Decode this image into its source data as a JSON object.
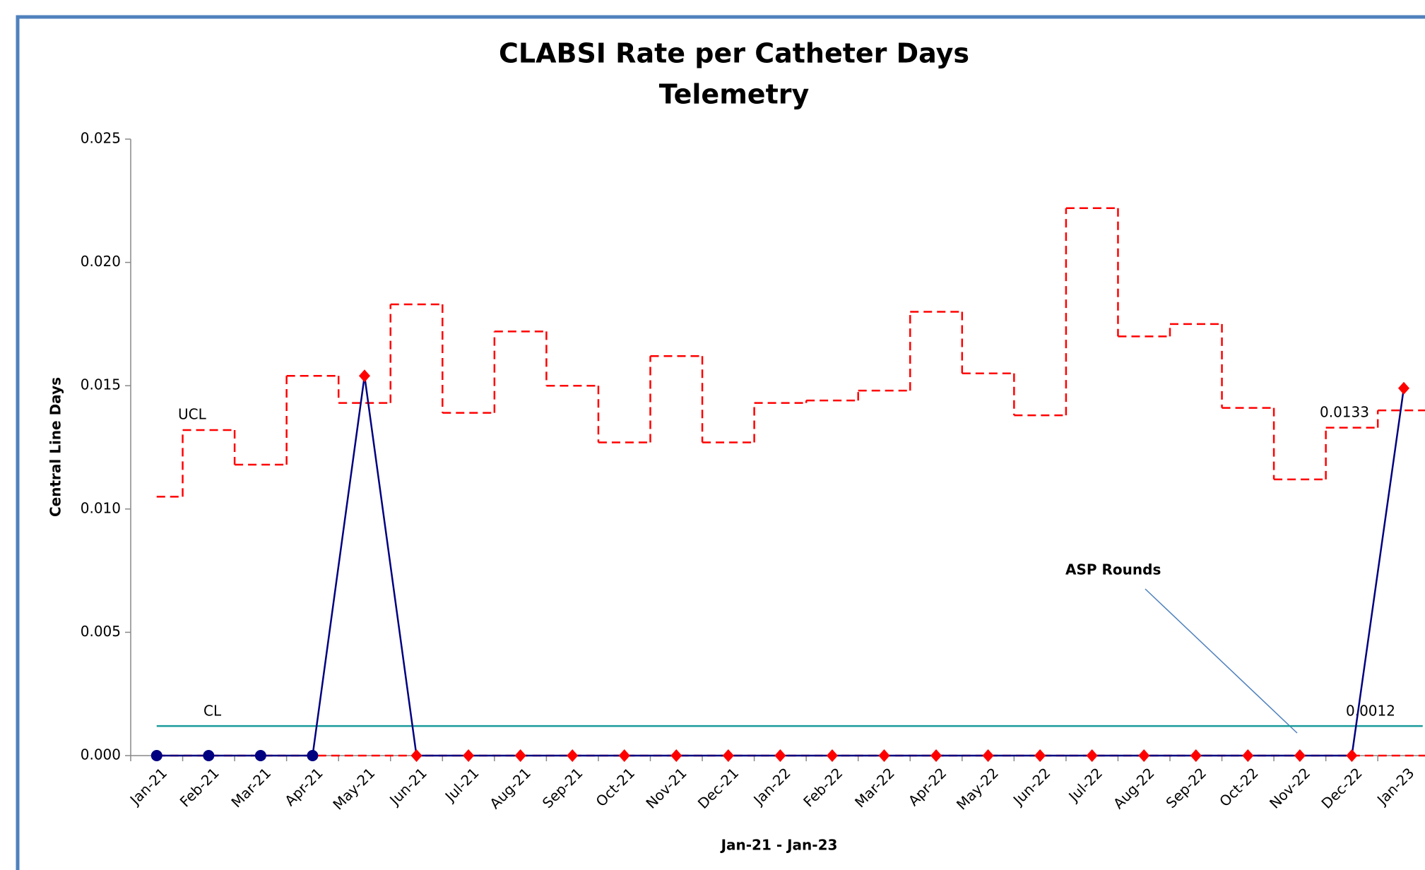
{
  "chart_data": {
    "type": "control",
    "title": "CLABSI Rate per Catheter Days",
    "subtitle": "Telemetry",
    "y_label": "Central Line Days",
    "x_label": "Jan-21 - Jan-23",
    "categories": [
      "Jan-21",
      "Feb-21",
      "Mar-21",
      "Apr-21",
      "May-21",
      "Jun-21",
      "Jul-21",
      "Aug-21",
      "Sep-21",
      "Oct-21",
      "Nov-21",
      "Dec-21",
      "Jan-22",
      "Feb-22",
      "Mar-22",
      "Apr-22",
      "May-22",
      "Jun-22",
      "Jul-22",
      "Aug-22",
      "Sep-22",
      "Oct-22",
      "Nov-22",
      "Dec-22",
      "Jan-23"
    ],
    "ylim": [
      0,
      0.025
    ],
    "yticks": [
      {
        "value": 0,
        "label": "0.000"
      },
      {
        "value": 0.005,
        "label": "0.005"
      },
      {
        "value": 0.01,
        "label": "0.010"
      },
      {
        "value": 0.015,
        "label": "0.015"
      },
      {
        "value": 0.02,
        "label": "0.020"
      },
      {
        "value": 0.025,
        "label": "0.025"
      }
    ],
    "series": [
      {
        "color": "#000080",
        "values": [
          0,
          0,
          0,
          0,
          0.0154,
          0,
          0,
          0,
          0,
          0,
          0,
          0,
          0,
          0,
          0,
          0,
          0,
          0,
          0,
          0,
          0,
          0,
          0,
          0,
          0.0149
        ],
        "marker_colors": [
          "#000080",
          "#000080",
          "#000080",
          "#000080",
          "#ff0000",
          "#ff0000",
          "#ff0000",
          "#ff0000",
          "#ff0000",
          "#ff0000",
          "#ff0000",
          "#ff0000",
          "#ff0000",
          "#ff0000",
          "#ff0000",
          "#ff0000",
          "#ff0000",
          "#ff0000",
          "#ff0000",
          "#ff0000",
          "#ff0000",
          "#ff0000",
          "#ff0000",
          "#ff0000",
          "#ff0000"
        ],
        "marker_shapes": [
          "circle",
          "circle",
          "circle",
          "circle",
          "diamond",
          "diamond",
          "diamond",
          "diamond",
          "diamond",
          "diamond",
          "diamond",
          "diamond",
          "diamond",
          "diamond",
          "diamond",
          "diamond",
          "diamond",
          "diamond",
          "diamond",
          "diamond",
          "diamond",
          "diamond",
          "diamond",
          "diamond",
          "diamond"
        ]
      }
    ],
    "ucl": {
      "color": "#ff0000",
      "values": [
        0.0105,
        0.0132,
        0.0118,
        0.0154,
        0.0143,
        0.0183,
        0.0139,
        0.0172,
        0.015,
        0.0127,
        0.0162,
        0.0127,
        0.0143,
        0.0144,
        0.0148,
        0.018,
        0.0155,
        0.0138,
        0.0222,
        0.017,
        0.0175,
        0.0141,
        0.0112,
        0.0133,
        0.014
      ]
    },
    "cl": {
      "color": "#1a9a9a",
      "value": 0.0012
    },
    "lcl": {
      "color": "#ff0000",
      "value": 0
    },
    "annotations": [
      "UCL",
      "CL",
      "0.0133",
      "0.0012",
      "ASP Rounds"
    ]
  }
}
